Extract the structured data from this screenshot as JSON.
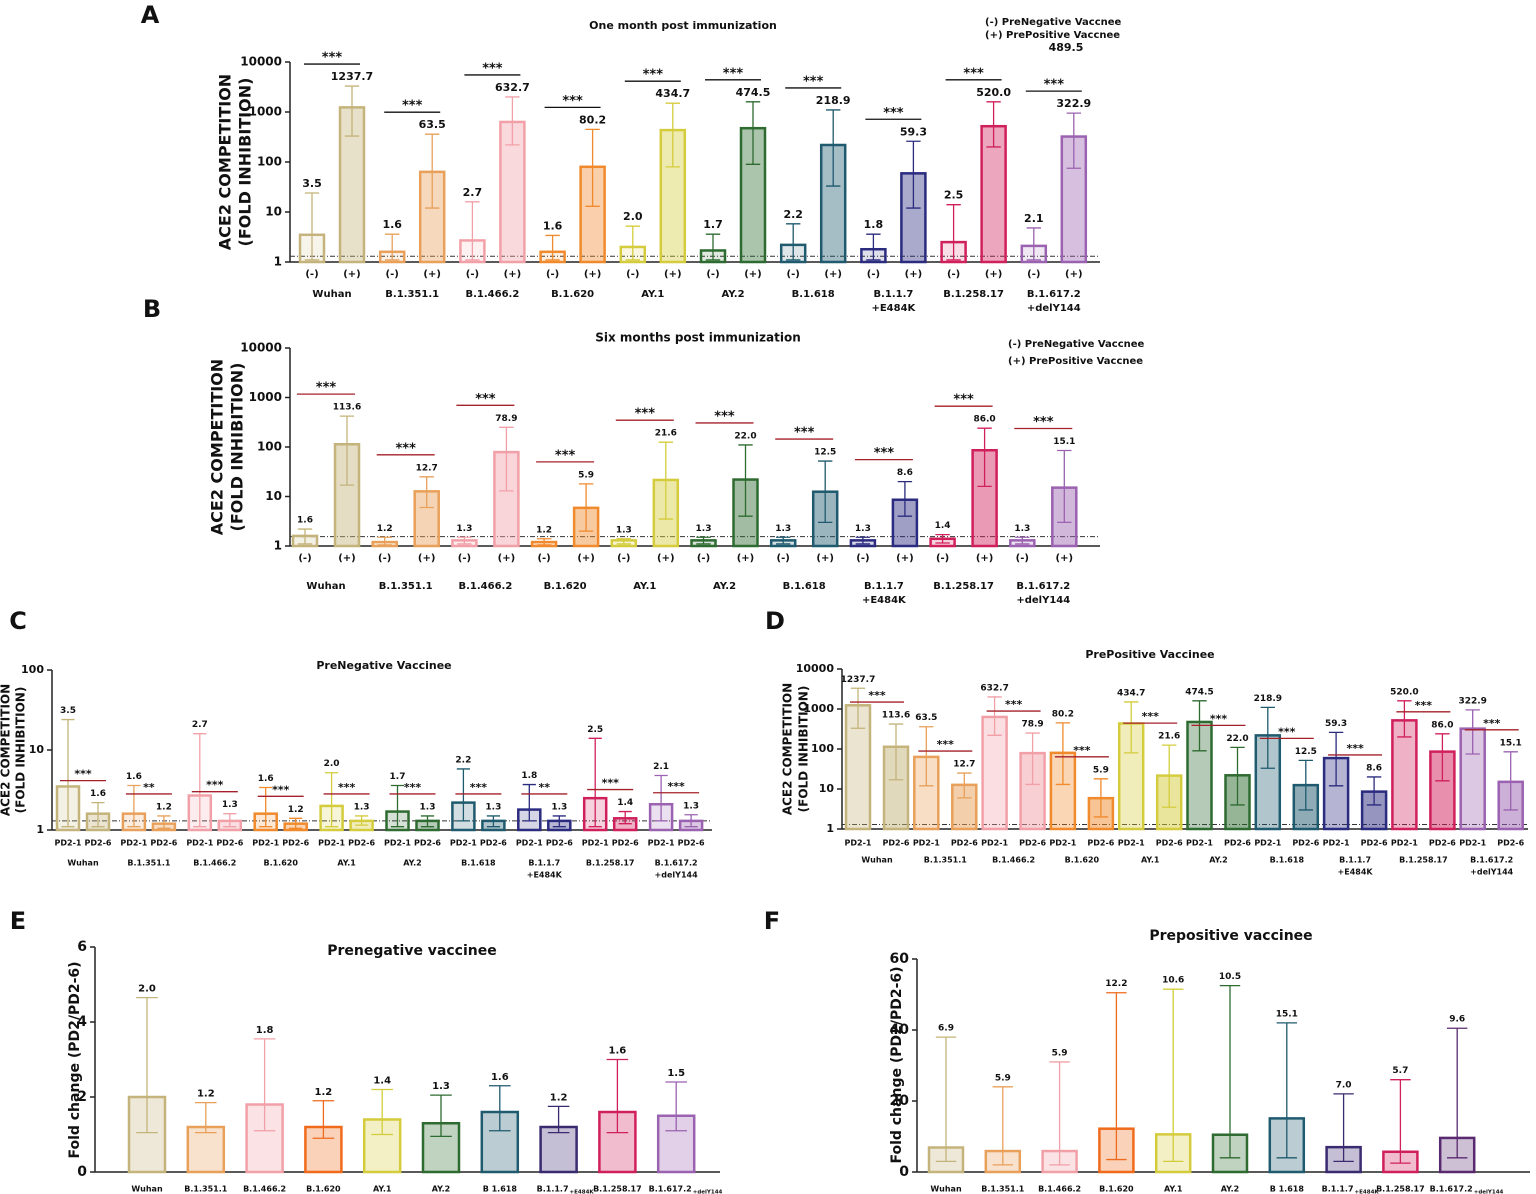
{
  "chart_data": [
    {
      "type": "bar",
      "panel": "A",
      "title": "One month post immunization",
      "ylabel": [
        "ACE2 COMPETITION",
        "(FOLD INHIBITION)"
      ],
      "log": true,
      "legend": true,
      "categories": [
        "Wuhan",
        "B.1.351.1",
        "B.1.466.2",
        "B.1.620",
        "AY.1",
        "AY.2",
        "B.1.618",
        [
          "B.1.1.7",
          "+E484K"
        ],
        "B.1.258.17",
        [
          "B.1.617.2",
          "+delY144"
        ]
      ],
      "colors": [
        "#c4b37a",
        "#e8a05a",
        "#f2a0a8",
        "#f08a2c",
        "#d4cc3c",
        "#2e6b30",
        "#1f5a6e",
        "#2b2b80",
        "#d0205c",
        "#9a62b0"
      ],
      "ylim": [
        1,
        10000
      ],
      "yticks": [
        1,
        10,
        100,
        1000,
        10000
      ],
      "ref_line": 1.3,
      "sig_color": "#111111",
      "significance": [
        "***",
        "***",
        "***",
        "***",
        "***",
        "***",
        "***",
        "***",
        "***",
        "***"
      ],
      "annotation": "489.5",
      "series": [
        {
          "name": "(-) PreNegative Vaccnee",
          "short": "(-)",
          "fill_opacity": 0.15,
          "values": [
            3.5,
            1.6,
            2.7,
            1.6,
            2.0,
            1.7,
            2.2,
            1.8,
            2.5,
            2.1
          ],
          "value_labels": [
            "3.5",
            "1.6",
            "2.7",
            "1.6",
            "2.0",
            "1.7",
            "2.2",
            "1.8",
            "2.5",
            "2.1"
          ],
          "err_high": [
            24,
            3.6,
            16,
            3.4,
            5.2,
            3.6,
            5.8,
            3.6,
            14,
            4.8
          ],
          "err_low": [
            1.1,
            1.1,
            1.1,
            1.1,
            1.1,
            1.1,
            1.1,
            1.1,
            1.1,
            1.1
          ]
        },
        {
          "name": "(+) PrePositive Vaccnee",
          "short": "(+)",
          "fill_opacity": 0.4,
          "values": [
            1237.7,
            63.5,
            632.7,
            80.2,
            434.7,
            474.5,
            218.9,
            59.3,
            520.0,
            322.9
          ],
          "value_labels": [
            "1237.7",
            "63.5",
            "632.7",
            "80.2",
            "434.7",
            "474.5",
            "218.9",
            "59.3",
            "520.0",
            "322.9"
          ],
          "err_high": [
            3300,
            360,
            2000,
            450,
            1500,
            1600,
            1100,
            260,
            1600,
            950
          ],
          "err_low": [
            330,
            12,
            220,
            13,
            80,
            90,
            33,
            12,
            200,
            75
          ]
        }
      ]
    },
    {
      "type": "bar",
      "panel": "B",
      "title": "Six months post immunization",
      "ylabel": [
        "ACE2 COMPETITION",
        "(FOLD INHIBITION)"
      ],
      "log": true,
      "legend": true,
      "categories": [
        "Wuhan",
        "B.1.351.1",
        "B.1.466.2",
        "B.1.620",
        "AY.1",
        "AY.2",
        "B.1.618",
        [
          "B.1.1.7",
          "+E484K"
        ],
        "B.1.258.17",
        [
          "B.1.617.2",
          "+delY144"
        ]
      ],
      "colors": [
        "#c4b37a",
        "#e8a05a",
        "#f2a0a8",
        "#f08a2c",
        "#d4cc3c",
        "#2e6b30",
        "#1f5a6e",
        "#2b2b80",
        "#d0205c",
        "#9a62b0"
      ],
      "ylim": [
        1,
        10000
      ],
      "yticks": [
        1,
        10,
        100,
        1000,
        10000
      ],
      "ref_line": 1.55,
      "sig_color": "#a5202a",
      "significance": [
        "***",
        "***",
        "***",
        "***",
        "***",
        "***",
        "***",
        "***",
        "***",
        "***"
      ],
      "series": [
        {
          "name": "(-) PreNegative Vaccnee",
          "short": "(-)",
          "fill_opacity": 0.2,
          "values": [
            1.6,
            1.2,
            1.3,
            1.2,
            1.3,
            1.3,
            1.3,
            1.3,
            1.4,
            1.3
          ],
          "value_labels": [
            "1.6",
            "1.2",
            "1.3",
            "1.2",
            "1.3",
            "1.3",
            "1.3",
            "1.3",
            "1.4",
            "1.3"
          ],
          "err_high": [
            2.2,
            1.5,
            1.5,
            1.4,
            1.4,
            1.5,
            1.5,
            1.5,
            1.7,
            1.5
          ],
          "err_low": [
            1.1,
            1.05,
            1.1,
            1.05,
            1.1,
            1.1,
            1.1,
            1.1,
            1.15,
            1.1
          ]
        },
        {
          "name": "(+) PrePositive Vaccnee",
          "short": "(+)",
          "fill_opacity": 0.45,
          "values": [
            113.6,
            12.7,
            78.9,
            5.9,
            21.6,
            22.0,
            12.5,
            8.6,
            86.0,
            15.1
          ],
          "value_labels": [
            "113.6",
            "12.7",
            "78.9",
            "5.9",
            "21.6",
            "22.0",
            "12.5",
            "8.6",
            "86.0",
            "15.1"
          ],
          "err_high": [
            420,
            25,
            250,
            18,
            125,
            110,
            52,
            20,
            240,
            85
          ],
          "err_low": [
            17,
            6,
            13,
            2,
            3.5,
            4,
            3,
            4,
            16,
            3
          ]
        }
      ]
    },
    {
      "type": "bar",
      "panel": "C",
      "title": "PreNegative Vaccinee",
      "ylabel": [
        "ACE2 COMPETITION",
        "(FOLD INHIBITION)"
      ],
      "log": true,
      "legend": false,
      "categories": [
        "Wuhan",
        "B.1.351.1",
        "B.1.466.2",
        "B.1.620",
        "AY.1",
        "AY.2",
        "B.1.618",
        [
          "B.1.1.7",
          "+E484K"
        ],
        "B.1.258.17",
        [
          "B.1.617.2",
          "+delY144"
        ]
      ],
      "colors": [
        "#c4b37a",
        "#e8a05a",
        "#f2a0a8",
        "#f08a2c",
        "#d4cc3c",
        "#2e6b30",
        "#1f5a6e",
        "#2b2b80",
        "#d0205c",
        "#9a62b0"
      ],
      "ylim": [
        1,
        100
      ],
      "yticks": [
        1,
        10,
        100
      ],
      "ref_line": 1.3,
      "sig_color": "#a5202a",
      "significance": [
        "***",
        "**",
        "***",
        "***",
        "***",
        "***",
        "***",
        "**",
        "***",
        "***"
      ],
      "series": [
        {
          "name": "PD2-1",
          "fill_opacity": 0.2,
          "values": [
            3.5,
            1.6,
            2.7,
            1.6,
            2.0,
            1.7,
            2.2,
            1.8,
            2.5,
            2.1
          ],
          "value_labels": [
            "3.5",
            "1.6",
            "2.7",
            "1.6",
            "2.0",
            "1.7",
            "2.2",
            "1.8",
            "2.5",
            "2.1"
          ],
          "err_high": [
            24,
            3.6,
            16,
            3.4,
            5.2,
            3.6,
            5.8,
            3.7,
            14,
            4.8
          ],
          "err_low": [
            1.1,
            1.1,
            1.1,
            1.1,
            1.1,
            1.1,
            1.3,
            1.3,
            1.1,
            1.3
          ]
        },
        {
          "name": "PD2-6",
          "fill_opacity": 0.35,
          "values": [
            1.6,
            1.2,
            1.3,
            1.2,
            1.3,
            1.3,
            1.3,
            1.3,
            1.4,
            1.3
          ],
          "value_labels": [
            "1.6",
            "1.2",
            "1.3",
            "1.2",
            "1.3",
            "1.3",
            "1.3",
            "1.3",
            "1.4",
            "1.3"
          ],
          "err_high": [
            2.2,
            1.5,
            1.6,
            1.4,
            1.5,
            1.5,
            1.5,
            1.5,
            1.7,
            1.55
          ],
          "err_low": [
            1.1,
            1.05,
            1.1,
            1.05,
            1.15,
            1.1,
            1.1,
            1.1,
            1.2,
            1.1
          ]
        }
      ]
    },
    {
      "type": "bar",
      "panel": "D",
      "title": "PrePositive Vaccinee",
      "ylabel": [
        "ACE2 COMPETITION",
        "(FOLD INHIBITION)"
      ],
      "log": true,
      "legend": false,
      "categories": [
        "Wuhan",
        "B.1.351.1",
        "B.1.466.2",
        "B.1.620",
        "AY.1",
        "AY.2",
        "B.1.618",
        [
          "B.1.1.7",
          "+E484K"
        ],
        "B.1.258.17",
        [
          "B.1.617.2",
          "+delY144"
        ]
      ],
      "colors": [
        "#c4b37a",
        "#e8a05a",
        "#f2a0a8",
        "#f08a2c",
        "#d4cc3c",
        "#2e6b30",
        "#1f5a6e",
        "#2b2b80",
        "#d0205c",
        "#9a62b0"
      ],
      "ylim": [
        1,
        10000
      ],
      "yticks": [
        1,
        10,
        100,
        1000,
        10000
      ],
      "ref_line": 1.3,
      "sig_color": "#a5202a",
      "significance": [
        "***",
        "***",
        "***",
        "***",
        "***",
        "***",
        "***",
        "***",
        "***",
        "***"
      ],
      "series": [
        {
          "name": "PD2-1",
          "fill_opacity": 0.35,
          "values": [
            1237.7,
            63.5,
            632.7,
            80.2,
            434.7,
            474.5,
            218.9,
            59.3,
            520.0,
            322.9
          ],
          "value_labels": [
            "1237.7",
            "63.5",
            "632.7",
            "80.2",
            "434.7",
            "474.5",
            "218.9",
            "59.3",
            "520.0",
            "322.9"
          ],
          "err_high": [
            3300,
            360,
            2000,
            450,
            1500,
            1600,
            1100,
            260,
            1600,
            950
          ],
          "err_low": [
            330,
            12,
            220,
            13,
            80,
            90,
            33,
            12,
            200,
            75
          ]
        },
        {
          "name": "PD2-6",
          "fill_opacity": 0.5,
          "values": [
            113.6,
            12.7,
            78.9,
            5.9,
            21.6,
            22.0,
            12.5,
            8.6,
            86.0,
            15.1
          ],
          "value_labels": [
            "113.6",
            "12.7",
            "78.9",
            "5.9",
            "21.6",
            "22.0",
            "12.5",
            "8.6",
            "86.0",
            "15.1"
          ],
          "err_high": [
            420,
            25,
            250,
            18,
            125,
            110,
            52,
            20,
            240,
            85
          ],
          "err_low": [
            17,
            6,
            13,
            2,
            3.5,
            4,
            3,
            4,
            16,
            3
          ]
        }
      ]
    },
    {
      "type": "bar",
      "panel": "E",
      "title": "Prenegative vaccinee",
      "ylabel": [
        "Fold change (PD2/PD2-6)"
      ],
      "log": false,
      "legend": false,
      "subscript": true,
      "categories": [
        "Wuhan",
        "B.1.351.1",
        "B.1.466.2",
        "B.1.620",
        "AY.1",
        "AY.2",
        "B 1.618",
        [
          "B.1.1.7",
          "+E484K"
        ],
        "B.1.258.17",
        [
          "B.1.617.2",
          "+delY144"
        ]
      ],
      "colors": [
        "#c4b37a",
        "#e8a05a",
        "#f2a0a8",
        "#f06a1c",
        "#d4cc3c",
        "#2e6b30",
        "#1f5a6e",
        "#3a2a70",
        "#d0205c",
        "#9a62b0"
      ],
      "ylim": [
        0,
        6
      ],
      "yticks": [
        0,
        2,
        4,
        6
      ],
      "series": [
        {
          "fill_opacity": 0.3,
          "values": [
            2.0,
            1.2,
            1.8,
            1.2,
            1.4,
            1.3,
            1.6,
            1.2,
            1.6,
            1.5
          ],
          "value_labels": [
            "2.0",
            "1.2",
            "1.8",
            "1.2",
            "1.4",
            "1.3",
            "1.6",
            "1.2",
            "1.6",
            "1.5"
          ],
          "err_high": [
            4.65,
            1.85,
            3.55,
            1.9,
            2.2,
            2.05,
            2.3,
            1.75,
            3.0,
            2.4
          ],
          "err_low": [
            1.05,
            1.05,
            1.1,
            0.9,
            1.0,
            0.95,
            1.1,
            1.05,
            1.05,
            1.1
          ]
        }
      ]
    },
    {
      "type": "bar",
      "panel": "F",
      "title": "Prepositive vaccinee",
      "ylabel": [
        "Fold change (PD2/PD2-6)"
      ],
      "log": false,
      "legend": false,
      "subscript": true,
      "categories": [
        "Wuhan",
        "B.1.351.1",
        "B.1.466.2",
        "B.1.620",
        "AY.1",
        "AY.2",
        "B 1.618",
        [
          "B.1.1.7",
          "+E484K"
        ],
        "B.1.258.17",
        [
          "B.1.617.2",
          "+delY144"
        ]
      ],
      "colors": [
        "#c4b37a",
        "#e8a05a",
        "#f2a0a8",
        "#f06a1c",
        "#d4cc3c",
        "#2e6b30",
        "#1f5a6e",
        "#3a2a70",
        "#d0205c",
        "#5a2a70"
      ],
      "ylim": [
        0,
        60
      ],
      "yticks": [
        0,
        20,
        40,
        60
      ],
      "series": [
        {
          "fill_opacity": 0.3,
          "values": [
            6.9,
            5.9,
            5.9,
            12.2,
            10.6,
            10.5,
            15.1,
            7.0,
            5.7,
            9.6
          ],
          "value_labels": [
            "6.9",
            "5.9",
            "5.9",
            "12.2",
            "10.6",
            "10.5",
            "15.1",
            "7.0",
            "5.7",
            "9.6"
          ],
          "err_high": [
            38,
            24,
            31,
            50.5,
            51.5,
            52.5,
            42,
            22,
            26,
            40.5
          ],
          "err_low": [
            3,
            2,
            2,
            3.5,
            3,
            4,
            4,
            3,
            2.5,
            4
          ]
        }
      ]
    }
  ]
}
